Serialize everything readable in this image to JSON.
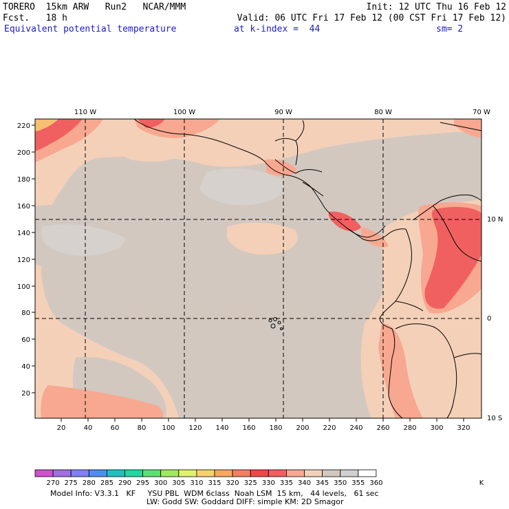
{
  "header": {
    "model": "TORERO",
    "resolution": "15km ARW",
    "run": "Run2",
    "org": "NCAR/MMM",
    "init": "Init: 12 UTC Thu 16 Feb 12",
    "fcst_label": "Fcst.",
    "fcst_hours": "18 h",
    "valid": "Valid: 06 UTC Fri 17 Feb 12 (00 CST Fri 17 Feb 12)",
    "field": "Equivalent potential temperature",
    "level": "at k-index =  44",
    "smoothing": "sm= 2"
  },
  "map": {
    "lon_labels": [
      "110 W",
      "100 W",
      "90 W",
      "80 W",
      "70 W"
    ],
    "lat_labels": [
      "10 N",
      "0",
      "10 S"
    ],
    "y_ticks": [
      "20",
      "40",
      "60",
      "80",
      "100",
      "120",
      "140",
      "160",
      "180",
      "200",
      "220"
    ],
    "x_ticks": [
      "20",
      "40",
      "60",
      "80",
      "100",
      "120",
      "140",
      "160",
      "180",
      "200",
      "220",
      "240",
      "260",
      "280",
      "300",
      "320"
    ]
  },
  "colorbar": {
    "labels": [
      "270",
      "275",
      "280",
      "285",
      "290",
      "295",
      "300",
      "305",
      "310",
      "315",
      "320",
      "325",
      "330",
      "335",
      "340",
      "345",
      "350",
      "355",
      "360"
    ],
    "unit": "K",
    "colors": [
      "#d050d0",
      "#a070e0",
      "#8080f0",
      "#4c8ff0",
      "#20c0c0",
      "#20d8a0",
      "#60e070",
      "#a0e860",
      "#e0f070",
      "#f8d070",
      "#f8a860",
      "#f08060",
      "#f04848",
      "#f06060",
      "#f8a890",
      "#f4d0b8",
      "#d2c8c0",
      "#d0d0d0",
      "#ffffff"
    ]
  },
  "footer": {
    "line1": "Model Info: V3.3.1   KF     YSU PBL  WDM 6class  Noah LSM  15 km,   44 levels,   61 sec",
    "line2": "LW: Godd SW: Goddard DIFF: simple KM: 2D Smagor"
  }
}
